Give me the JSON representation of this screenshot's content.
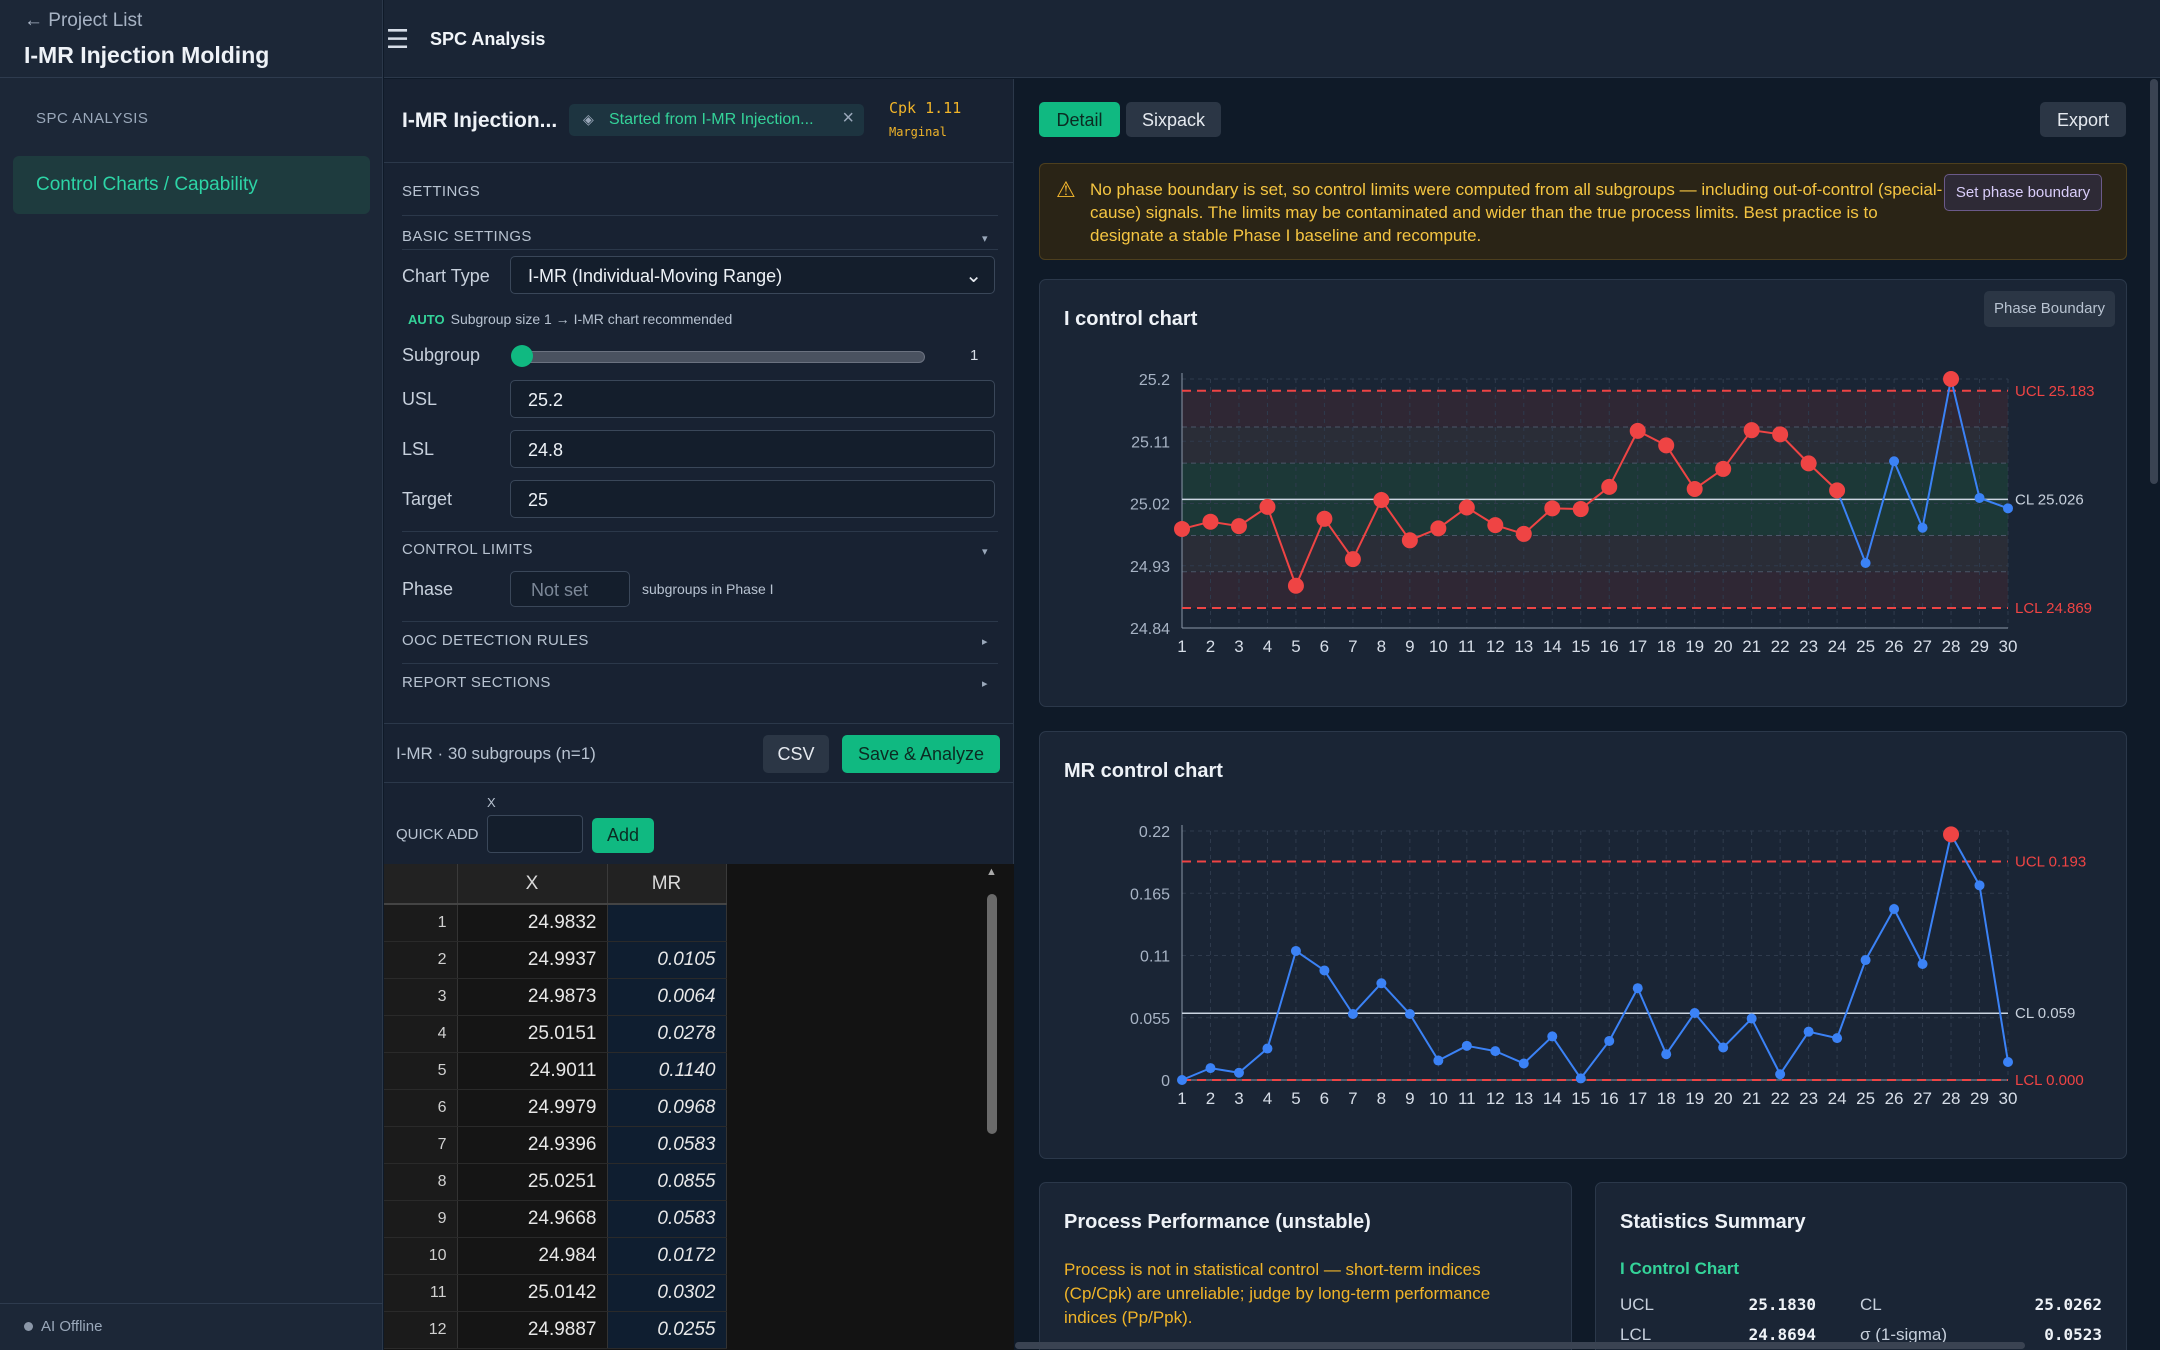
{
  "nav": {
    "back_label": "← Project List",
    "project_title": "I-MR Injection Molding",
    "section_label": "SPC ANALYSIS",
    "item_label": "Control Charts / Capability",
    "status_label": "AI Offline"
  },
  "topbar": {
    "title": "SPC Analysis",
    "menu_icon": "hamburger-icon"
  },
  "panel": {
    "name": "I-MR Injection...",
    "tag": "Started from I-MR Injection...",
    "cpk": "Cpk 1.11",
    "cpk_status": "Marginal",
    "settings_label": "SETTINGS",
    "basic_settings": "BASIC SETTINGS",
    "chart_type_label": "Chart Type",
    "chart_type_value": "I-MR (Individual-Moving Range)",
    "auto_badge": "AUTO",
    "auto_text": "Subgroup size 1 → I-MR chart recommended",
    "subgroup_label": "Subgroup",
    "subgroup_value": "1",
    "usl_label": "USL",
    "usl_value": "25.2",
    "lsl_label": "LSL",
    "lsl_value": "24.8",
    "target_label": "Target",
    "target_value": "25",
    "control_limits": "CONTROL LIMITS",
    "phase_label": "Phase",
    "phase_placeholder": "Not set",
    "phase_note": "subgroups in Phase I",
    "ooc_rules": "OOC DETECTION RULES",
    "report_sections": "REPORT SECTIONS",
    "summary": "I-MR · 30 subgroups (n=1)",
    "csv_label": "CSV",
    "save_label": "Save & Analyze",
    "quick_add_label": "QUICK ADD",
    "quick_add_x": "X",
    "add_label": "Add"
  },
  "table": {
    "headers": [
      "X",
      "MR"
    ],
    "rows": [
      [
        "1",
        "24.9832",
        ""
      ],
      [
        "2",
        "24.9937",
        "0.0105"
      ],
      [
        "3",
        "24.9873",
        "0.0064"
      ],
      [
        "4",
        "25.0151",
        "0.0278"
      ],
      [
        "5",
        "24.9011",
        "0.1140"
      ],
      [
        "6",
        "24.9979",
        "0.0968"
      ],
      [
        "7",
        "24.9396",
        "0.0583"
      ],
      [
        "8",
        "25.0251",
        "0.0855"
      ],
      [
        "9",
        "24.9668",
        "0.0583"
      ],
      [
        "10",
        "24.984",
        "0.0172"
      ],
      [
        "11",
        "25.0142",
        "0.0302"
      ],
      [
        "12",
        "24.9887",
        "0.0255"
      ]
    ]
  },
  "right": {
    "tab_detail": "Detail",
    "tab_sixpack": "Sixpack",
    "export_label": "Export",
    "warning": "No phase boundary is set, so control limits were computed from all subgroups — including out-of-control (special-cause) signals. The limits may be contaminated and wider than the true process limits. Best practice is to designate a stable Phase I baseline and recompute.",
    "set_phase_label": "Set phase boundary",
    "i_chart_title": "I control chart",
    "phase_boundary_label": "Phase Boundary",
    "mr_chart_title": "MR control chart",
    "perf_title": "Process Performance (unstable)",
    "perf_text": "Process is not in statistical control — short-term indices (Cp/Cpk) are unreliable; judge by long-term performance indices (Pp/Ppk).",
    "stats_title": "Statistics Summary",
    "stats_sub": "I Control Chart",
    "stats": {
      "ucl_label": "UCL",
      "ucl": "25.1830",
      "cl_label": "CL",
      "cl": "25.0262",
      "lcl_label": "LCL",
      "lcl": "24.8694",
      "sigma_label": "σ (1-sigma)",
      "sigma": "0.0523"
    }
  },
  "colors": {
    "accent": "#10b981",
    "ooc_point": "#ef4444",
    "in_control_point": "#3b82f6",
    "limit_line": "#ef4444",
    "center_line": "#cbd5e1",
    "warning_text": "#f5c542"
  },
  "chart_data": [
    {
      "type": "line",
      "title": "I control chart",
      "x": [
        1,
        2,
        3,
        4,
        5,
        6,
        7,
        8,
        9,
        10,
        11,
        12,
        13,
        14,
        15,
        16,
        17,
        18,
        19,
        20,
        21,
        22,
        23,
        24,
        25,
        26,
        27,
        28,
        29,
        30
      ],
      "series": [
        {
          "values": [
            24.9832,
            24.9937,
            24.9873,
            25.0151,
            24.9011,
            24.9979,
            24.9396,
            25.0251,
            24.9668,
            24.984,
            25.0142,
            24.9887,
            24.976,
            25.013,
            25.012,
            25.044,
            25.125,
            25.104,
            25.041,
            25.07,
            25.126,
            25.12,
            25.078,
            25.039,
            24.934,
            25.081,
            24.985,
            25.2,
            25.028,
            25.013
          ],
          "ooc": [
            1,
            1,
            1,
            1,
            1,
            1,
            1,
            1,
            1,
            1,
            1,
            1,
            1,
            1,
            1,
            1,
            1,
            1,
            1,
            1,
            1,
            1,
            1,
            1,
            0,
            0,
            0,
            1,
            0,
            0
          ]
        }
      ],
      "limits": {
        "UCL": 25.183,
        "CL": 25.026,
        "LCL": 24.869
      },
      "limit_labels": {
        "UCL": "UCL 25.183",
        "CL": "CL 25.026",
        "LCL": "LCL 24.869"
      },
      "yticks": [
        "25.2",
        "25.11",
        "25.02",
        "24.93",
        "24.84"
      ],
      "ylim": [
        24.84,
        25.2
      ],
      "grid": true
    },
    {
      "type": "line",
      "title": "MR control chart",
      "x": [
        1,
        2,
        3,
        4,
        5,
        6,
        7,
        8,
        9,
        10,
        11,
        12,
        13,
        14,
        15,
        16,
        17,
        18,
        19,
        20,
        21,
        22,
        23,
        24,
        25,
        26,
        27,
        28,
        29,
        30
      ],
      "series": [
        {
          "values": [
            0,
            0.0105,
            0.0064,
            0.0278,
            0.114,
            0.0968,
            0.0583,
            0.0855,
            0.0583,
            0.0172,
            0.0302,
            0.0255,
            0.0146,
            0.0385,
            0.0014,
            0.0345,
            0.0811,
            0.0228,
            0.0592,
            0.0287,
            0.0543,
            0.0051,
            0.0427,
            0.037,
            0.106,
            0.1511,
            0.1025,
            0.217,
            0.172,
            0.0159
          ],
          "ooc": [
            0,
            0,
            0,
            0,
            0,
            0,
            0,
            0,
            0,
            0,
            0,
            0,
            0,
            0,
            0,
            0,
            0,
            0,
            0,
            0,
            0,
            0,
            0,
            0,
            0,
            0,
            0,
            1,
            0,
            0
          ]
        }
      ],
      "limits": {
        "UCL": 0.193,
        "CL": 0.059,
        "LCL": 0.0
      },
      "limit_labels": {
        "UCL": "UCL 0.193",
        "CL": "CL 0.059",
        "LCL": "LCL 0.000"
      },
      "yticks": [
        "0.22",
        "0.165",
        "0.11",
        "0.055",
        "0"
      ],
      "ylim": [
        0,
        0.22
      ],
      "grid": true
    }
  ]
}
